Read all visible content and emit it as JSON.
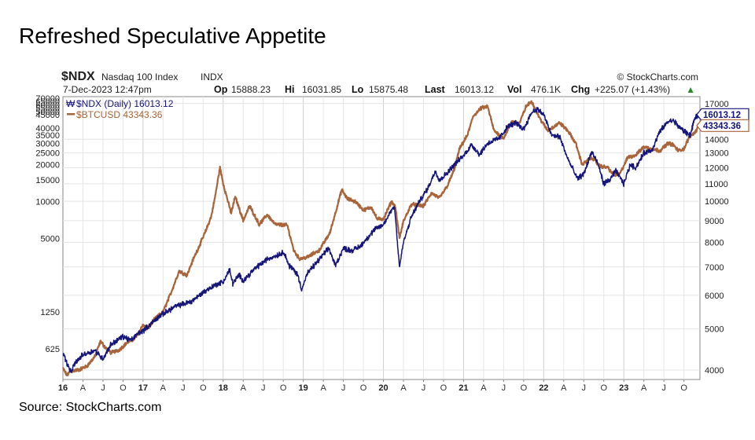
{
  "slide_title": "Refreshed Speculative Appetite",
  "source_note": "Source: StockCharts.com",
  "chart_data": {
    "type": "line",
    "header": {
      "symbol": "$NDX",
      "name": "Nasdaq 100 Index",
      "exchange": "INDX",
      "brand": "© StockCharts.com",
      "timestamp": "7-Dec-2023 12:47pm",
      "stats": [
        {
          "label": "Op",
          "value": "15888.23"
        },
        {
          "label": "Hi",
          "value": "16031.85"
        },
        {
          "label": "Lo",
          "value": "15875.48"
        },
        {
          "label": "Last",
          "value": "16013.12"
        },
        {
          "label": "Vol",
          "value": "476.1K"
        },
        {
          "label": "Chg",
          "value": "+225.07 (+1.43%)"
        }
      ],
      "change_arrow": "▲"
    },
    "legend": [
      {
        "label": "$NDX (Daily) 16013.12",
        "color": "#15157a"
      },
      {
        "label": "$BTCUSD 43343.36",
        "color": "#a8643a"
      }
    ],
    "right_axis": {
      "ticks": [
        4000,
        5000,
        6000,
        7000,
        8000,
        9000,
        10000,
        11000,
        12000,
        13000,
        14000,
        17000
      ],
      "labels": [
        "4000",
        "5000",
        "6000",
        "7000",
        "8000",
        "9000",
        "10000",
        "11000",
        "12000",
        "13000",
        "14000",
        "17000"
      ],
      "scale": "log",
      "range": [
        3800,
        17500
      ]
    },
    "left_axis": {
      "ticks": [
        625,
        1250,
        5000,
        10000,
        15000,
        20000,
        25000,
        30000,
        35000,
        40000
      ],
      "labels": [
        "625",
        "1250",
        "5000",
        "10000",
        "15000",
        "20000",
        "25000",
        "30000",
        "35000",
        "40000"
      ],
      "extra_labels": [
        "70000",
        "65000",
        "60000",
        "55000",
        "50000",
        "45000"
      ],
      "scale": "log",
      "range": [
        350,
        70000
      ]
    },
    "last_values": {
      "ndx": "16013.12",
      "btc": "43343.36"
    },
    "x_labels": [
      {
        "t": 2016.0,
        "label": "16",
        "year": true
      },
      {
        "t": 2016.25,
        "label": "A"
      },
      {
        "t": 2016.5,
        "label": "J"
      },
      {
        "t": 2016.75,
        "label": "O"
      },
      {
        "t": 2017.0,
        "label": "17",
        "year": true
      },
      {
        "t": 2017.25,
        "label": "A"
      },
      {
        "t": 2017.5,
        "label": "J"
      },
      {
        "t": 2017.75,
        "label": "O"
      },
      {
        "t": 2018.0,
        "label": "18",
        "year": true
      },
      {
        "t": 2018.25,
        "label": "A"
      },
      {
        "t": 2018.5,
        "label": "J"
      },
      {
        "t": 2018.75,
        "label": "O"
      },
      {
        "t": 2019.0,
        "label": "19",
        "year": true
      },
      {
        "t": 2019.25,
        "label": "A"
      },
      {
        "t": 2019.5,
        "label": "J"
      },
      {
        "t": 2019.75,
        "label": "O"
      },
      {
        "t": 2020.0,
        "label": "20",
        "year": true
      },
      {
        "t": 2020.25,
        "label": "A"
      },
      {
        "t": 2020.5,
        "label": "J"
      },
      {
        "t": 2020.75,
        "label": "O"
      },
      {
        "t": 2021.0,
        "label": "21",
        "year": true
      },
      {
        "t": 2021.25,
        "label": "A"
      },
      {
        "t": 2021.5,
        "label": "J"
      },
      {
        "t": 2021.75,
        "label": "O"
      },
      {
        "t": 2022.0,
        "label": "22",
        "year": true
      },
      {
        "t": 2022.25,
        "label": "A"
      },
      {
        "t": 2022.5,
        "label": "J"
      },
      {
        "t": 2022.75,
        "label": "O"
      },
      {
        "t": 2023.0,
        "label": "23",
        "year": true
      },
      {
        "t": 2023.25,
        "label": "A"
      },
      {
        "t": 2023.5,
        "label": "J"
      },
      {
        "t": 2023.75,
        "label": "O"
      }
    ],
    "x_range": [
      2016.0,
      2023.95
    ],
    "series": [
      {
        "name": "$NDX (Daily)",
        "color": "#15157a",
        "axis": "right",
        "points": [
          [
            2016.0,
            4400
          ],
          [
            2016.05,
            4150
          ],
          [
            2016.1,
            3950
          ],
          [
            2016.15,
            4150
          ],
          [
            2016.25,
            4350
          ],
          [
            2016.4,
            4450
          ],
          [
            2016.5,
            4250
          ],
          [
            2016.6,
            4600
          ],
          [
            2016.75,
            4800
          ],
          [
            2016.85,
            4700
          ],
          [
            2016.95,
            4900
          ],
          [
            2017.0,
            4950
          ],
          [
            2017.2,
            5350
          ],
          [
            2017.4,
            5650
          ],
          [
            2017.6,
            5800
          ],
          [
            2017.75,
            6100
          ],
          [
            2017.9,
            6350
          ],
          [
            2018.0,
            6450
          ],
          [
            2018.08,
            6900
          ],
          [
            2018.12,
            6400
          ],
          [
            2018.2,
            6700
          ],
          [
            2018.25,
            6500
          ],
          [
            2018.4,
            6950
          ],
          [
            2018.55,
            7300
          ],
          [
            2018.7,
            7500
          ],
          [
            2018.76,
            7600
          ],
          [
            2018.82,
            7050
          ],
          [
            2018.88,
            6900
          ],
          [
            2018.93,
            6700
          ],
          [
            2018.98,
            6200
          ],
          [
            2019.05,
            6750
          ],
          [
            2019.2,
            7300
          ],
          [
            2019.32,
            7750
          ],
          [
            2019.4,
            7050
          ],
          [
            2019.5,
            7750
          ],
          [
            2019.6,
            7650
          ],
          [
            2019.7,
            7800
          ],
          [
            2019.8,
            8200
          ],
          [
            2019.9,
            8600
          ],
          [
            2020.0,
            8800
          ],
          [
            2020.1,
            9550
          ],
          [
            2020.14,
            9700
          ],
          [
            2020.17,
            8200
          ],
          [
            2020.2,
            7000
          ],
          [
            2020.25,
            8000
          ],
          [
            2020.35,
            9200
          ],
          [
            2020.45,
            10000
          ],
          [
            2020.55,
            10700
          ],
          [
            2020.65,
            11800
          ],
          [
            2020.7,
            11200
          ],
          [
            2020.8,
            11700
          ],
          [
            2020.9,
            12300
          ],
          [
            2021.0,
            12800
          ],
          [
            2021.1,
            13600
          ],
          [
            2021.2,
            12900
          ],
          [
            2021.3,
            13700
          ],
          [
            2021.45,
            14100
          ],
          [
            2021.55,
            15000
          ],
          [
            2021.65,
            15300
          ],
          [
            2021.75,
            14800
          ],
          [
            2021.85,
            16200
          ],
          [
            2021.92,
            16500
          ],
          [
            2022.0,
            16000
          ],
          [
            2022.1,
            14300
          ],
          [
            2022.2,
            14200
          ],
          [
            2022.3,
            12600
          ],
          [
            2022.42,
            11300
          ],
          [
            2022.5,
            11600
          ],
          [
            2022.6,
            13100
          ],
          [
            2022.68,
            12200
          ],
          [
            2022.75,
            11000
          ],
          [
            2022.82,
            11200
          ],
          [
            2022.9,
            11800
          ],
          [
            2023.0,
            11000
          ],
          [
            2023.08,
            12200
          ],
          [
            2023.15,
            12000
          ],
          [
            2023.25,
            13000
          ],
          [
            2023.35,
            13200
          ],
          [
            2023.45,
            14600
          ],
          [
            2023.55,
            15400
          ],
          [
            2023.62,
            15500
          ],
          [
            2023.7,
            14900
          ],
          [
            2023.78,
            14500
          ],
          [
            2023.83,
            14300
          ],
          [
            2023.88,
            15600
          ],
          [
            2023.935,
            16013
          ]
        ]
      },
      {
        "name": "$BTCUSD",
        "color": "#a8643a",
        "axis": "left",
        "points": [
          [
            2016.0,
            430
          ],
          [
            2016.05,
            380
          ],
          [
            2016.1,
            410
          ],
          [
            2016.2,
            420
          ],
          [
            2016.3,
            450
          ],
          [
            2016.4,
            540
          ],
          [
            2016.47,
            720
          ],
          [
            2016.52,
            650
          ],
          [
            2016.6,
            580
          ],
          [
            2016.7,
            610
          ],
          [
            2016.8,
            700
          ],
          [
            2016.9,
            760
          ],
          [
            2017.0,
            980
          ],
          [
            2017.05,
            900
          ],
          [
            2017.15,
            1100
          ],
          [
            2017.25,
            1250
          ],
          [
            2017.35,
            1800
          ],
          [
            2017.45,
            2700
          ],
          [
            2017.55,
            2500
          ],
          [
            2017.62,
            3300
          ],
          [
            2017.7,
            4300
          ],
          [
            2017.78,
            5700
          ],
          [
            2017.85,
            7500
          ],
          [
            2017.9,
            11000
          ],
          [
            2017.96,
            19000
          ],
          [
            2018.0,
            14000
          ],
          [
            2018.1,
            8000
          ],
          [
            2018.15,
            11000
          ],
          [
            2018.25,
            7000
          ],
          [
            2018.33,
            9200
          ],
          [
            2018.45,
            6500
          ],
          [
            2018.55,
            7800
          ],
          [
            2018.65,
            6500
          ],
          [
            2018.8,
            6400
          ],
          [
            2018.88,
            4000
          ],
          [
            2018.95,
            3400
          ],
          [
            2019.05,
            3500
          ],
          [
            2019.2,
            4000
          ],
          [
            2019.33,
            5500
          ],
          [
            2019.42,
            9000
          ],
          [
            2019.48,
            12500
          ],
          [
            2019.55,
            10500
          ],
          [
            2019.65,
            10000
          ],
          [
            2019.75,
            8500
          ],
          [
            2019.85,
            9000
          ],
          [
            2019.92,
            7200
          ],
          [
            2020.0,
            7200
          ],
          [
            2020.1,
            10000
          ],
          [
            2020.15,
            9000
          ],
          [
            2020.2,
            5000
          ],
          [
            2020.25,
            6900
          ],
          [
            2020.35,
            9500
          ],
          [
            2020.5,
            9200
          ],
          [
            2020.6,
            11700
          ],
          [
            2020.7,
            10700
          ],
          [
            2020.8,
            13500
          ],
          [
            2020.88,
            18000
          ],
          [
            2020.95,
            27000
          ],
          [
            2021.05,
            35000
          ],
          [
            2021.12,
            50000
          ],
          [
            2021.22,
            58000
          ],
          [
            2021.3,
            60000
          ],
          [
            2021.38,
            38000
          ],
          [
            2021.5,
            33000
          ],
          [
            2021.6,
            45000
          ],
          [
            2021.7,
            44000
          ],
          [
            2021.78,
            60000
          ],
          [
            2021.85,
            66000
          ],
          [
            2021.95,
            48000
          ],
          [
            2022.05,
            38000
          ],
          [
            2022.2,
            44000
          ],
          [
            2022.3,
            38000
          ],
          [
            2022.4,
            30000
          ],
          [
            2022.48,
            20000
          ],
          [
            2022.6,
            23000
          ],
          [
            2022.7,
            19500
          ],
          [
            2022.8,
            19000
          ],
          [
            2022.87,
            16500
          ],
          [
            2022.95,
            16800
          ],
          [
            2023.05,
            23000
          ],
          [
            2023.15,
            24000
          ],
          [
            2023.25,
            28000
          ],
          [
            2023.35,
            27000
          ],
          [
            2023.45,
            26000
          ],
          [
            2023.55,
            30000
          ],
          [
            2023.62,
            29000
          ],
          [
            2023.68,
            26000
          ],
          [
            2023.75,
            27000
          ],
          [
            2023.82,
            34000
          ],
          [
            2023.9,
            37500
          ],
          [
            2023.935,
            43343
          ]
        ]
      }
    ]
  }
}
